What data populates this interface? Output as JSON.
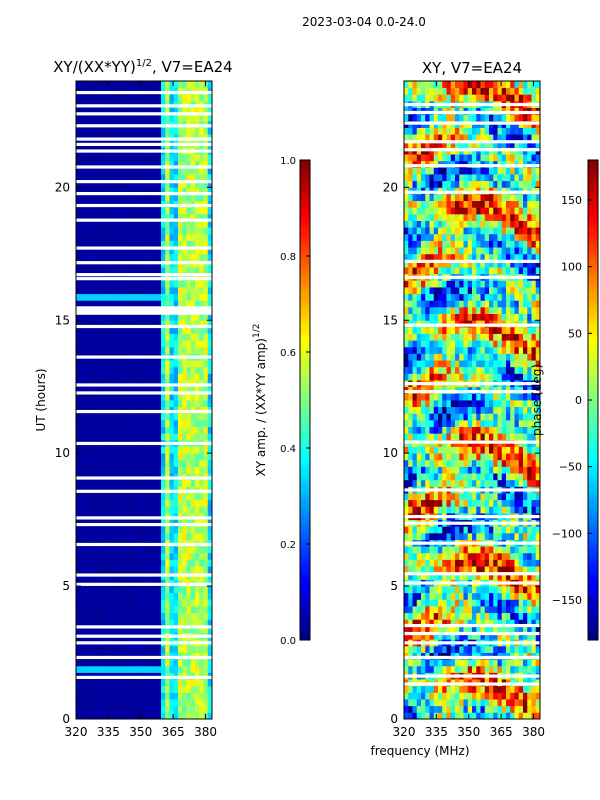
{
  "figure_title": "2023-03-04 0.0-24.0",
  "xlabel": "frequency (MHz)",
  "colors": {
    "jet": [
      "#00007f",
      "#0000ff",
      "#007fff",
      "#00ffff",
      "#7fff7f",
      "#ffff00",
      "#ff7f00",
      "#ff0000",
      "#7f0000"
    ]
  },
  "chart_data": [
    {
      "type": "heatmap",
      "title_main": "XY/(XX*YY)",
      "title_sup": "1/2",
      "title_tail": ", V7=EA24",
      "ylabel": "UT (hours)",
      "xlim": [
        320,
        383
      ],
      "ylim": [
        0,
        24
      ],
      "xticks": [
        320,
        335,
        350,
        365,
        380
      ],
      "yticks": [
        0,
        5,
        10,
        15,
        20
      ],
      "gap_rows_hours": [
        1.55,
        2.3,
        2.85,
        3.1,
        3.45,
        5.05,
        5.4,
        6.55,
        7.3,
        7.55,
        8.55,
        9.05,
        10.35,
        11.55,
        12.25,
        12.55,
        13.6,
        14.75,
        15.25,
        15.35,
        15.45,
        16.55,
        16.7,
        17.15,
        17.7,
        18.75,
        19.3,
        19.75,
        20.2,
        20.75,
        21.35,
        21.6,
        21.8,
        22.3,
        22.75,
        23.05,
        23.55
      ],
      "value_model": {
        "background": 0.02,
        "band_starts_mhz": 360,
        "band_level": 0.35,
        "bright_stripes_mhz": [
          363,
          368,
          371,
          375,
          379
        ],
        "bright_level": 0.55
      },
      "colorbar": {
        "label_main": "XY amp. / (XX*YY amp)",
        "label_sup": "1/2",
        "range": [
          0.0,
          1.0
        ],
        "ticks": [
          "0.0",
          "0.2",
          "0.4",
          "0.6",
          "0.8",
          "1.0"
        ]
      }
    },
    {
      "type": "heatmap",
      "title": "XY, V7=EA24",
      "xlim": [
        320,
        383
      ],
      "ylim": [
        0,
        24
      ],
      "xticks": [
        320,
        335,
        350,
        365,
        380
      ],
      "yticks": [
        0,
        5,
        10,
        15,
        20
      ],
      "gap_rows_hours": [
        1.3,
        1.6,
        2.3,
        2.85,
        3.2,
        3.5,
        5.1,
        5.45,
        6.6,
        7.35,
        7.6,
        8.6,
        10.4,
        12.3,
        12.6,
        14.8,
        16.6,
        17.2,
        19.8,
        20.8,
        21.4,
        21.7,
        22.4,
        22.8,
        23.1
      ],
      "value_model": {
        "quantity": "phase",
        "range_deg": [
          -180,
          180
        ],
        "banding": "horizontal phase bands with noisy speckle"
      },
      "colorbar": {
        "label": "phase (deg)",
        "range": [
          -180,
          180
        ],
        "ticks": [
          "150",
          "100",
          "50",
          "0",
          "−50",
          "−100",
          "−150"
        ],
        "tick_values": [
          150,
          100,
          50,
          0,
          -50,
          -100,
          -150
        ]
      }
    }
  ]
}
